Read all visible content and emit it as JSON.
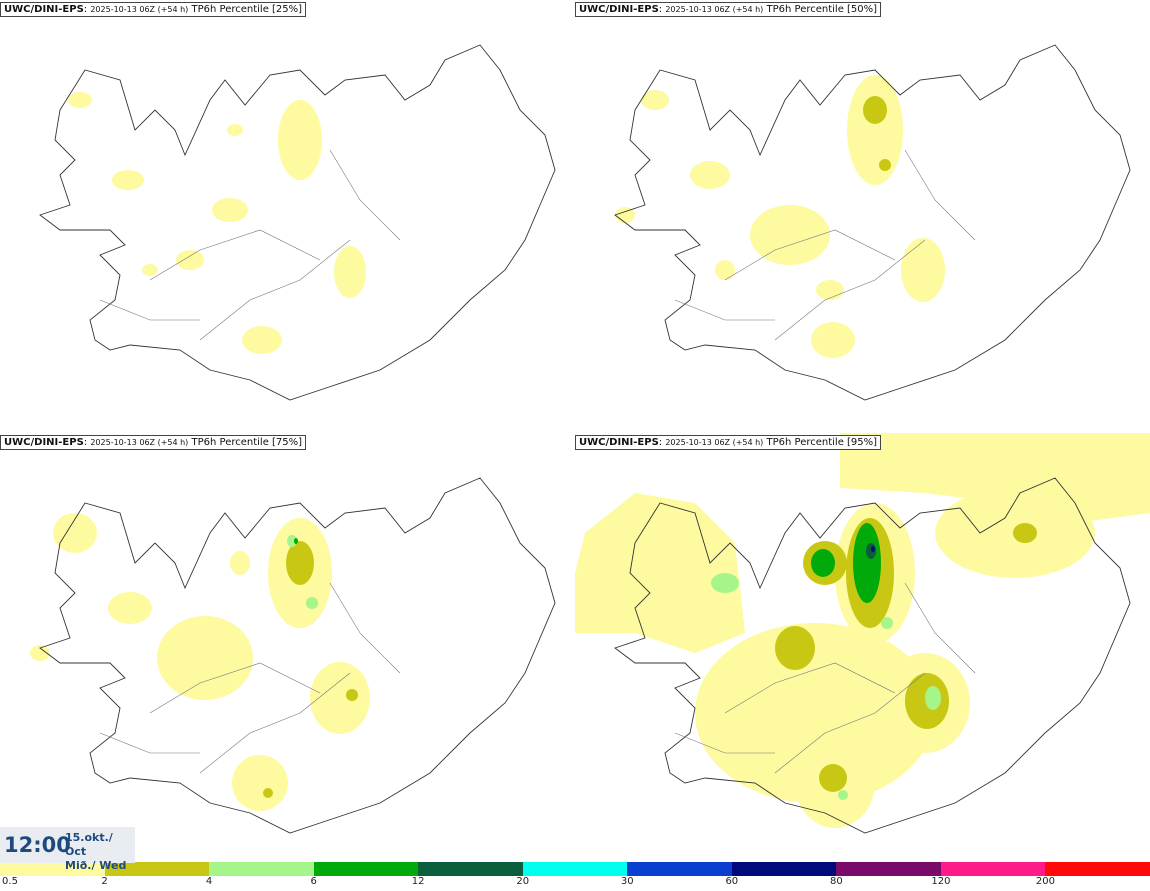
{
  "panels": [
    {
      "model": "UWC/DINI-EPS",
      "run": "2025-10-13 06Z (+54 h)",
      "field": "TP6h Percentile [25%]",
      "percentile": 25
    },
    {
      "model": "UWC/DINI-EPS",
      "run": "2025-10-13 06Z (+54 h)",
      "field": "TP6h Percentile [50%]",
      "percentile": 50
    },
    {
      "model": "UWC/DINI-EPS",
      "run": "2025-10-13 06Z (+54 h)",
      "field": "TP6h Percentile [75%]",
      "percentile": 75
    },
    {
      "model": "UWC/DINI-EPS",
      "run": "2025-10-13 06Z (+54 h)",
      "field": "TP6h Percentile [95%]",
      "percentile": 95
    }
  ],
  "valid_time": {
    "clock": "12:00",
    "date_line1": "15.okt./ Oct",
    "date_line2": "Mið./ Wed"
  },
  "legend": {
    "colors": [
      "#fdfaa0",
      "#c8c814",
      "#a6f58a",
      "#00aa0a",
      "#0b5e3b",
      "#00ffee",
      "#0b3fd0",
      "#000a7a",
      "#7a0a6a",
      "#ff1a8a",
      "#ff0a0a"
    ],
    "ticks": [
      "0.5",
      "2",
      "4",
      "6",
      "12",
      "20",
      "30",
      "60",
      "80",
      "120",
      "200"
    ]
  },
  "palette": {
    "land_outline": "#333333",
    "river": "#777777",
    "background": "#ffffff"
  }
}
